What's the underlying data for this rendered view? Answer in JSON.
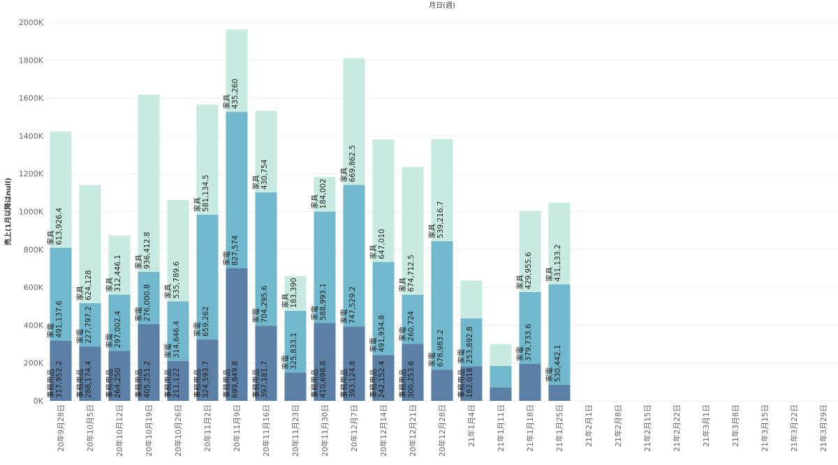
{
  "chart_data": {
    "type": "bar",
    "stacked": true,
    "title": "月日(週)",
    "xlabel": "",
    "ylabel": "売上(1月以降はnull)",
    "ylim": [
      0,
      2000000
    ],
    "yticks": [
      0,
      200000,
      400000,
      600000,
      800000,
      1000000,
      1200000,
      1400000,
      1600000,
      1800000,
      2000000
    ],
    "ytick_labels": [
      "0K",
      "200K",
      "400K",
      "600K",
      "800K",
      "1000K",
      "1200K",
      "1400K",
      "1600K",
      "1800K",
      "2000K"
    ],
    "grid": true,
    "categories": [
      "20年9月28日",
      "20年10月5日",
      "20年10月12日",
      "20年10月19日",
      "20年10月26日",
      "20年11月2日",
      "20年11月9日",
      "20年11月16日",
      "20年11月23日",
      "20年11月30日",
      "20年12月7日",
      "20年12月14日",
      "20年12月21日",
      "20年12月28日",
      "21年1月4日",
      "21年1月11日",
      "21年1月18日",
      "21年1月25日",
      "21年2月1日",
      "21年2月8日",
      "21年2月15日",
      "21年2月22日",
      "21年3月1日",
      "21年3月8日",
      "21年3月15日",
      "21年3月22日",
      "21年3月29日"
    ],
    "series": [
      {
        "name": "事務用品",
        "color": "#5b7fa5",
        "values": [
          317952.2,
          288174.4,
          264250,
          405251.2,
          211122,
          324593.7,
          699849.8,
          397181.7,
          150000,
          410698.8,
          393124.8,
          242152.4,
          300253.6,
          165000,
          182018,
          70000,
          195000,
          85000,
          null,
          null,
          null,
          null,
          null,
          null,
          null,
          null,
          null
        ],
        "labels": [
          "317,952.2",
          "288,174.4",
          "264,250",
          "405,251.2",
          "211,122",
          "324,593.7",
          "699,849.8",
          "397,181.7",
          "",
          "410,698.8",
          "393,124.8",
          "242,152.4",
          "300,253.6",
          "",
          "182,018",
          "",
          "",
          "",
          "",
          "",
          "",
          "",
          "",
          "",
          "",
          "",
          ""
        ]
      },
      {
        "name": "家電",
        "color": "#72b8cc",
        "values": [
          491137.6,
          227797.2,
          297002.4,
          276000.8,
          314646.4,
          659262,
          827574,
          704295.6,
          325833.1,
          588993.1,
          747529.2,
          491934.8,
          260724,
          678983.2,
          253892.8,
          115000,
          379733.6,
          530442.1,
          null,
          null,
          null,
          null,
          null,
          null,
          null,
          null,
          null
        ],
        "labels": [
          "491,137.6",
          "227,797.2",
          "297,002.4",
          "276,000.8",
          "314,646.4",
          "659,262",
          "827,574",
          "704,295.6",
          "325,833.1",
          "588,993.1",
          "747,529.2",
          "491,934.8",
          "260,724",
          "678,983.2",
          "253,892.8",
          "",
          "379,733.6",
          "530,442.1",
          "",
          "",
          "",
          "",
          "",
          "",
          "",
          "",
          ""
        ]
      },
      {
        "name": "家具",
        "color": "#c9eae1",
        "values": [
          613926.4,
          624128,
          312446.1,
          936412.8,
          535789.6,
          581134.5,
          435260,
          430754,
          183390,
          184002,
          669862.5,
          647010,
          674712.5,
          539216.7,
          200000,
          115000,
          429955.6,
          431133.2,
          null,
          null,
          null,
          null,
          null,
          null,
          null,
          null,
          null
        ],
        "labels": [
          "613,926.4",
          "624,128",
          "312,446.1",
          "936,412.8",
          "535,789.6",
          "581,134.5",
          "435,260",
          "430,754",
          "183,390",
          "184,002",
          "669,862.5",
          "647,010",
          "674,712.5",
          "539,216.7",
          "",
          "",
          "429,955.6",
          "431,133.2",
          "",
          "",
          "",
          "",
          "",
          "",
          "",
          "",
          ""
        ]
      }
    ]
  }
}
